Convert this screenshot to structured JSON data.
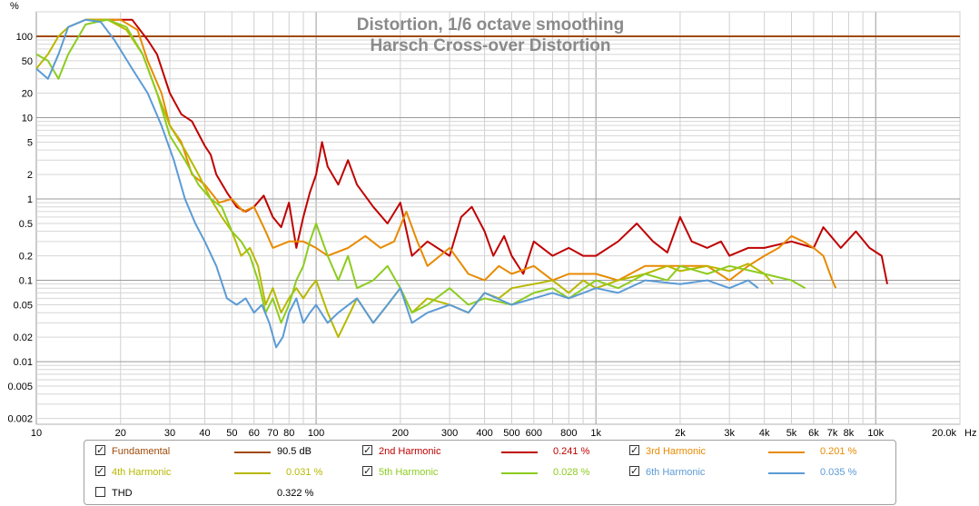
{
  "chart_data": {
    "type": "line",
    "title": "Distortion, 1/6 octave smoothing",
    "subtitle": "Harsch Cross-over Distortion",
    "ylabel": "%",
    "xunit": "Hz",
    "xscale": "log",
    "yscale": "log",
    "xlim": [
      10,
      20000
    ],
    "ylim": [
      0.0017,
      200
    ],
    "x_ticks": [
      "10",
      "20",
      "30",
      "40",
      "50",
      "60",
      "70",
      "80",
      "100",
      "200",
      "300",
      "400",
      "500",
      "600",
      "800",
      "1k",
      "2k",
      "3k",
      "4k",
      "5k",
      "6k",
      "7k",
      "8k",
      "10k",
      "20.0k"
    ],
    "y_ticks": [
      "100",
      "50",
      "20",
      "10",
      "5",
      "2",
      "1",
      "0.5",
      "0.2",
      "0.1",
      "0.05",
      "0.02",
      "0.01",
      "0.005",
      "0.002"
    ],
    "grid": true,
    "series": [
      {
        "name": "Fundamental",
        "color": "#a04a0a",
        "legend_value": "90.5 dB",
        "checked": true,
        "points": [
          [
            10,
            100
          ],
          [
            20000,
            100
          ]
        ]
      },
      {
        "name": "2nd Harmonic",
        "color": "#c00000",
        "legend_value": "0.241 %",
        "checked": true,
        "points": [
          [
            15,
            160
          ],
          [
            19,
            160
          ],
          [
            22,
            160
          ],
          [
            25,
            90
          ],
          [
            27,
            60
          ],
          [
            30,
            20
          ],
          [
            33,
            11
          ],
          [
            36,
            9
          ],
          [
            40,
            4.5
          ],
          [
            42,
            3.5
          ],
          [
            44,
            2
          ],
          [
            48,
            1.2
          ],
          [
            52,
            0.8
          ],
          [
            56,
            0.7
          ],
          [
            60,
            0.8
          ],
          [
            65,
            1.1
          ],
          [
            70,
            0.6
          ],
          [
            75,
            0.45
          ],
          [
            80,
            0.9
          ],
          [
            85,
            0.25
          ],
          [
            90,
            0.6
          ],
          [
            95,
            1.2
          ],
          [
            100,
            2
          ],
          [
            105,
            5
          ],
          [
            110,
            2.5
          ],
          [
            120,
            1.5
          ],
          [
            130,
            3
          ],
          [
            140,
            1.5
          ],
          [
            160,
            0.8
          ],
          [
            180,
            0.5
          ],
          [
            200,
            0.9
          ],
          [
            220,
            0.2
          ],
          [
            250,
            0.3
          ],
          [
            300,
            0.2
          ],
          [
            330,
            0.6
          ],
          [
            360,
            0.8
          ],
          [
            400,
            0.4
          ],
          [
            430,
            0.2
          ],
          [
            470,
            0.35
          ],
          [
            500,
            0.2
          ],
          [
            550,
            0.12
          ],
          [
            600,
            0.3
          ],
          [
            700,
            0.2
          ],
          [
            800,
            0.25
          ],
          [
            900,
            0.2
          ],
          [
            1000,
            0.2
          ],
          [
            1200,
            0.3
          ],
          [
            1400,
            0.5
          ],
          [
            1600,
            0.3
          ],
          [
            1800,
            0.22
          ],
          [
            2000,
            0.6
          ],
          [
            2200,
            0.3
          ],
          [
            2500,
            0.25
          ],
          [
            2800,
            0.3
          ],
          [
            3000,
            0.2
          ],
          [
            3500,
            0.25
          ],
          [
            4000,
            0.25
          ],
          [
            5000,
            0.3
          ],
          [
            6000,
            0.25
          ],
          [
            6500,
            0.45
          ],
          [
            7500,
            0.25
          ],
          [
            8500,
            0.4
          ],
          [
            9500,
            0.25
          ],
          [
            10500,
            0.2
          ],
          [
            11000,
            0.09
          ]
        ]
      },
      {
        "name": "3rd Harmonic",
        "color": "#e88a00",
        "legend_value": "0.201 %",
        "checked": true,
        "points": [
          [
            15,
            160
          ],
          [
            20,
            160
          ],
          [
            23,
            120
          ],
          [
            25,
            50
          ],
          [
            28,
            20
          ],
          [
            30,
            8
          ],
          [
            33,
            5
          ],
          [
            36,
            2
          ],
          [
            40,
            1.5
          ],
          [
            45,
            0.9
          ],
          [
            50,
            1
          ],
          [
            55,
            0.7
          ],
          [
            60,
            0.8
          ],
          [
            66,
            0.4
          ],
          [
            70,
            0.25
          ],
          [
            80,
            0.3
          ],
          [
            90,
            0.3
          ],
          [
            100,
            0.25
          ],
          [
            110,
            0.2
          ],
          [
            130,
            0.25
          ],
          [
            150,
            0.35
          ],
          [
            170,
            0.25
          ],
          [
            190,
            0.3
          ],
          [
            210,
            0.7
          ],
          [
            230,
            0.3
          ],
          [
            250,
            0.15
          ],
          [
            300,
            0.25
          ],
          [
            350,
            0.12
          ],
          [
            400,
            0.1
          ],
          [
            450,
            0.15
          ],
          [
            500,
            0.12
          ],
          [
            600,
            0.15
          ],
          [
            700,
            0.1
          ],
          [
            800,
            0.12
          ],
          [
            1000,
            0.12
          ],
          [
            1200,
            0.1
          ],
          [
            1500,
            0.15
          ],
          [
            2000,
            0.15
          ],
          [
            2500,
            0.15
          ],
          [
            3000,
            0.1
          ],
          [
            3500,
            0.15
          ],
          [
            4000,
            0.2
          ],
          [
            4500,
            0.25
          ],
          [
            5000,
            0.35
          ],
          [
            5500,
            0.3
          ],
          [
            6000,
            0.25
          ],
          [
            6500,
            0.2
          ],
          [
            7000,
            0.1
          ],
          [
            7200,
            0.08
          ]
        ]
      },
      {
        "name": "4th Harmonic",
        "color": "#b8b800",
        "legend_value": "0.031 %",
        "checked": true,
        "points": [
          [
            10,
            40
          ],
          [
            11,
            60
          ],
          [
            12,
            100
          ],
          [
            13,
            130
          ],
          [
            15,
            160
          ],
          [
            18,
            160
          ],
          [
            21,
            120
          ],
          [
            24,
            60
          ],
          [
            27,
            20
          ],
          [
            30,
            8
          ],
          [
            34,
            4
          ],
          [
            38,
            2
          ],
          [
            42,
            1
          ],
          [
            46,
            0.6
          ],
          [
            50,
            0.4
          ],
          [
            54,
            0.2
          ],
          [
            58,
            0.25
          ],
          [
            62,
            0.15
          ],
          [
            66,
            0.05
          ],
          [
            70,
            0.08
          ],
          [
            75,
            0.04
          ],
          [
            80,
            0.06
          ],
          [
            85,
            0.08
          ],
          [
            90,
            0.06
          ],
          [
            95,
            0.08
          ],
          [
            100,
            0.1
          ],
          [
            110,
            0.04
          ],
          [
            120,
            0.02
          ],
          [
            140,
            0.06
          ],
          [
            160,
            0.03
          ],
          [
            180,
            0.05
          ],
          [
            200,
            0.08
          ],
          [
            220,
            0.04
          ],
          [
            250,
            0.06
          ],
          [
            300,
            0.05
          ],
          [
            350,
            0.04
          ],
          [
            400,
            0.07
          ],
          [
            450,
            0.06
          ],
          [
            500,
            0.08
          ],
          [
            600,
            0.09
          ],
          [
            700,
            0.1
          ],
          [
            800,
            0.07
          ],
          [
            900,
            0.1
          ],
          [
            1000,
            0.08
          ],
          [
            1200,
            0.1
          ],
          [
            1500,
            0.12
          ],
          [
            1800,
            0.15
          ],
          [
            2000,
            0.13
          ],
          [
            2500,
            0.15
          ],
          [
            3000,
            0.13
          ],
          [
            3500,
            0.16
          ],
          [
            4000,
            0.12
          ],
          [
            4300,
            0.09
          ]
        ]
      },
      {
        "name": "5th Harmonic",
        "color": "#8ccc20",
        "legend_value": "0.028 %",
        "checked": true,
        "points": [
          [
            10,
            60
          ],
          [
            11,
            50
          ],
          [
            12,
            30
          ],
          [
            13,
            60
          ],
          [
            15,
            140
          ],
          [
            18,
            160
          ],
          [
            21,
            130
          ],
          [
            24,
            60
          ],
          [
            27,
            20
          ],
          [
            30,
            6
          ],
          [
            34,
            3
          ],
          [
            38,
            1.5
          ],
          [
            42,
            1
          ],
          [
            46,
            0.8
          ],
          [
            50,
            0.4
          ],
          [
            54,
            0.3
          ],
          [
            58,
            0.2
          ],
          [
            62,
            0.1
          ],
          [
            66,
            0.04
          ],
          [
            70,
            0.06
          ],
          [
            75,
            0.03
          ],
          [
            80,
            0.05
          ],
          [
            85,
            0.1
          ],
          [
            90,
            0.15
          ],
          [
            95,
            0.3
          ],
          [
            100,
            0.5
          ],
          [
            110,
            0.2
          ],
          [
            120,
            0.1
          ],
          [
            130,
            0.2
          ],
          [
            140,
            0.08
          ],
          [
            160,
            0.1
          ],
          [
            180,
            0.15
          ],
          [
            200,
            0.08
          ],
          [
            220,
            0.04
          ],
          [
            250,
            0.05
          ],
          [
            300,
            0.08
          ],
          [
            350,
            0.05
          ],
          [
            400,
            0.06
          ],
          [
            500,
            0.05
          ],
          [
            600,
            0.07
          ],
          [
            700,
            0.08
          ],
          [
            800,
            0.06
          ],
          [
            1000,
            0.1
          ],
          [
            1200,
            0.08
          ],
          [
            1500,
            0.12
          ],
          [
            1800,
            0.1
          ],
          [
            2000,
            0.15
          ],
          [
            2500,
            0.12
          ],
          [
            3000,
            0.15
          ],
          [
            4000,
            0.12
          ],
          [
            5000,
            0.1
          ],
          [
            5600,
            0.08
          ]
        ]
      },
      {
        "name": "6th Harmonic",
        "color": "#5b9bd5",
        "legend_value": "0.035 %",
        "checked": true,
        "points": [
          [
            10,
            40
          ],
          [
            11,
            30
          ],
          [
            12,
            60
          ],
          [
            13,
            130
          ],
          [
            15,
            160
          ],
          [
            17,
            150
          ],
          [
            19,
            90
          ],
          [
            22,
            40
          ],
          [
            25,
            20
          ],
          [
            28,
            8
          ],
          [
            31,
            3
          ],
          [
            34,
            1
          ],
          [
            37,
            0.5
          ],
          [
            40,
            0.3
          ],
          [
            44,
            0.15
          ],
          [
            48,
            0.06
          ],
          [
            52,
            0.05
          ],
          [
            56,
            0.06
          ],
          [
            60,
            0.04
          ],
          [
            64,
            0.05
          ],
          [
            68,
            0.03
          ],
          [
            72,
            0.015
          ],
          [
            76,
            0.02
          ],
          [
            80,
            0.04
          ],
          [
            85,
            0.06
          ],
          [
            90,
            0.03
          ],
          [
            95,
            0.04
          ],
          [
            100,
            0.05
          ],
          [
            110,
            0.03
          ],
          [
            120,
            0.04
          ],
          [
            140,
            0.06
          ],
          [
            160,
            0.03
          ],
          [
            180,
            0.05
          ],
          [
            200,
            0.08
          ],
          [
            220,
            0.03
          ],
          [
            250,
            0.04
          ],
          [
            300,
            0.05
          ],
          [
            350,
            0.04
          ],
          [
            400,
            0.07
          ],
          [
            500,
            0.05
          ],
          [
            600,
            0.06
          ],
          [
            700,
            0.07
          ],
          [
            800,
            0.06
          ],
          [
            1000,
            0.08
          ],
          [
            1200,
            0.07
          ],
          [
            1500,
            0.1
          ],
          [
            2000,
            0.09
          ],
          [
            2500,
            0.1
          ],
          [
            3000,
            0.08
          ],
          [
            3500,
            0.1
          ],
          [
            3800,
            0.08
          ]
        ]
      }
    ]
  },
  "legend": {
    "thd_label": "THD",
    "thd_value": "0.322 %",
    "thd_checked": false
  }
}
